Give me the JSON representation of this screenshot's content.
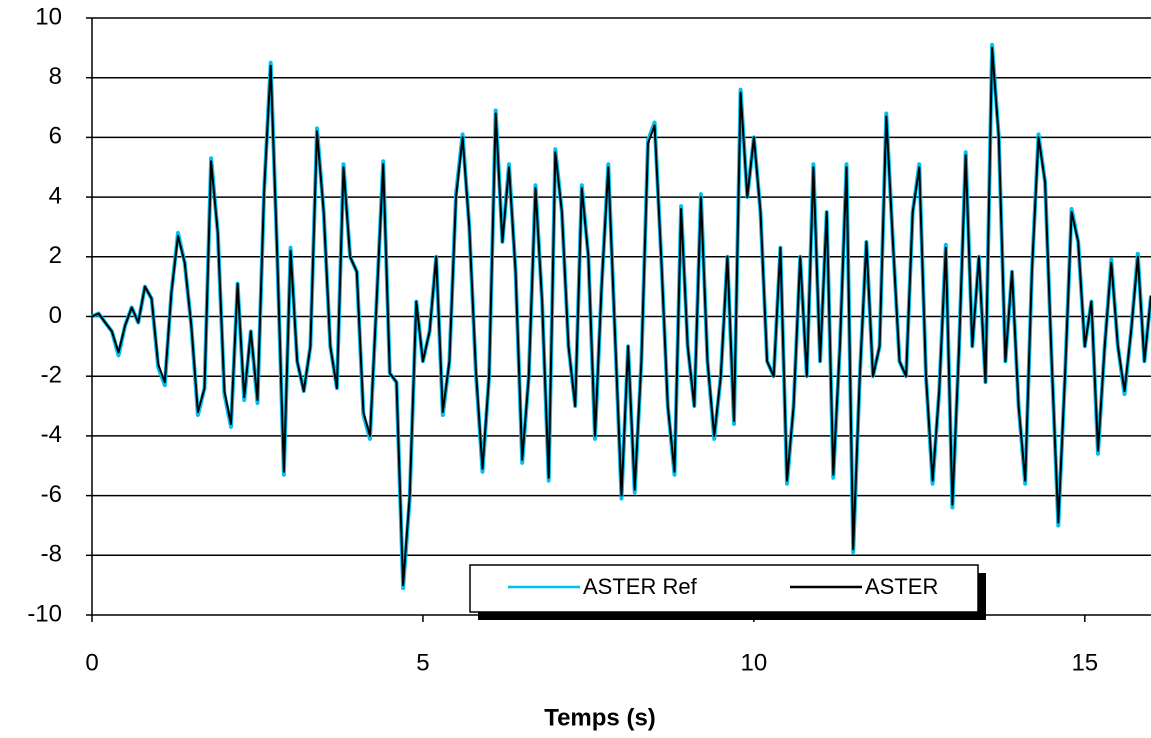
{
  "chart_data": {
    "type": "line",
    "xlabel": "Temps (s)",
    "x": [
      0,
      0.1,
      0.2,
      0.3,
      0.4,
      0.5,
      0.6,
      0.7,
      0.8,
      0.9,
      1,
      1.1,
      1.2,
      1.3,
      1.4,
      1.5,
      1.6,
      1.7,
      1.8,
      1.9,
      2,
      2.1,
      2.2,
      2.3,
      2.4,
      2.5,
      2.6,
      2.7,
      2.8,
      2.9,
      3,
      3.1,
      3.2,
      3.3,
      3.4,
      3.5,
      3.6,
      3.7,
      3.8,
      3.9,
      4,
      4.1,
      4.2,
      4.3,
      4.4,
      4.5,
      4.6,
      4.7,
      4.8,
      4.9,
      5,
      5.1,
      5.2,
      5.3,
      5.4,
      5.5,
      5.6,
      5.7,
      5.8,
      5.9,
      6,
      6.1,
      6.2,
      6.3,
      6.4,
      6.5,
      6.6,
      6.7,
      6.8,
      6.9,
      7,
      7.1,
      7.2,
      7.3,
      7.4,
      7.5,
      7.6,
      7.7,
      7.8,
      7.9,
      8,
      8.1,
      8.2,
      8.3,
      8.4,
      8.5,
      8.6,
      8.7,
      8.8,
      8.9,
      9,
      9.1,
      9.2,
      9.3,
      9.4,
      9.5,
      9.6,
      9.7,
      9.8,
      9.9,
      10,
      10.1,
      10.2,
      10.3,
      10.4,
      10.5,
      10.6,
      10.7,
      10.8,
      10.9,
      11,
      11.1,
      11.2,
      11.3,
      11.4,
      11.5,
      11.6,
      11.7,
      11.8,
      11.9,
      12,
      12.1,
      12.2,
      12.3,
      12.4,
      12.5,
      12.6,
      12.7,
      12.8,
      12.9,
      13,
      13.1,
      13.2,
      13.3,
      13.4,
      13.5,
      13.6,
      13.7,
      13.8,
      13.9,
      14,
      14.1,
      14.2,
      14.3,
      14.4,
      14.5,
      14.6,
      14.7,
      14.8,
      14.9,
      15,
      15.1,
      15.2,
      15.3,
      15.4,
      15.5,
      15.6,
      15.7,
      15.8,
      15.9,
      16
    ],
    "series": [
      {
        "name": "ASTER Ref",
        "color": "#00c0f0",
        "values": [
          0,
          0.1,
          -0.2,
          -0.5,
          -1.3,
          -0.3,
          0.3,
          -0.2,
          1.0,
          0.6,
          -1.7,
          -2.3,
          0.8,
          2.8,
          1.8,
          -0.3,
          -3.3,
          -2.4,
          5.3,
          2.8,
          -2.6,
          -3.7,
          1.1,
          -2.8,
          -0.5,
          -2.9,
          4.2,
          8.5,
          2.0,
          -5.3,
          2.3,
          -1.5,
          -2.5,
          -1.0,
          6.3,
          3.5,
          -1.0,
          -2.4,
          5.1,
          2.0,
          1.5,
          -3.3,
          -4.1,
          0.5,
          5.2,
          -1.9,
          -2.2,
          -9.1,
          -6.1,
          0.5,
          -1.5,
          -0.5,
          2.0,
          -3.3,
          -1.5,
          4.1,
          6.1,
          3.0,
          -1.9,
          -5.2,
          -2.0,
          6.9,
          2.5,
          5.1,
          1.5,
          -4.9,
          -2.0,
          4.4,
          0.5,
          -5.5,
          5.6,
          3.5,
          -1.0,
          -3.0,
          4.4,
          2.0,
          -4.1,
          1.0,
          5.1,
          -0.5,
          -6.1,
          -1.0,
          -5.9,
          -1.5,
          5.9,
          6.5,
          2.0,
          -3.0,
          -5.3,
          3.7,
          -1.0,
          -3.0,
          4.1,
          -1.5,
          -4.1,
          -2.0,
          2.0,
          -3.6,
          7.6,
          4.0,
          6.0,
          3.5,
          -1.5,
          -2.0,
          2.3,
          -5.6,
          -3.0,
          2.0,
          -2.0,
          5.1,
          -1.5,
          3.5,
          -5.4,
          -1.0,
          5.1,
          -7.9,
          -2.0,
          2.5,
          -2.0,
          -1.0,
          6.8,
          2.5,
          -1.5,
          -2.0,
          3.5,
          5.1,
          -2.0,
          -5.6,
          -2.5,
          2.4,
          -6.4,
          -1.0,
          5.5,
          -1.0,
          2.0,
          -2.2,
          9.1,
          6.0,
          -1.5,
          1.5,
          -3.0,
          -5.6,
          1.5,
          6.1,
          4.5,
          -1.5,
          -7.0,
          -2.0,
          3.6,
          2.5,
          -1.0,
          0.5,
          -4.6,
          -1.0,
          1.9,
          -1.0,
          -2.6,
          -0.5,
          2.1,
          -1.5,
          0.7
        ]
      },
      {
        "name": "ASTER",
        "color": "#000000",
        "values": [
          0,
          0.1,
          -0.2,
          -0.5,
          -1.2,
          -0.3,
          0.3,
          -0.2,
          1.0,
          0.6,
          -1.6,
          -2.2,
          0.8,
          2.7,
          1.8,
          -0.3,
          -3.2,
          -2.4,
          5.2,
          2.8,
          -2.5,
          -3.6,
          1.1,
          -2.7,
          -0.5,
          -2.8,
          4.2,
          8.4,
          2.0,
          -5.2,
          2.2,
          -1.5,
          -2.5,
          -1.0,
          6.2,
          3.5,
          -1.0,
          -2.4,
          5.0,
          2.0,
          1.5,
          -3.2,
          -4.0,
          0.5,
          5.1,
          -1.9,
          -2.2,
          -9.0,
          -6.0,
          0.5,
          -1.5,
          -0.5,
          2.0,
          -3.2,
          -1.5,
          4.0,
          6.0,
          3.0,
          -1.8,
          -5.1,
          -2.0,
          6.8,
          2.5,
          5.0,
          1.5,
          -4.8,
          -2.0,
          4.3,
          0.5,
          -5.4,
          5.5,
          3.5,
          -1.0,
          -3.0,
          4.3,
          2.0,
          -4.0,
          1.0,
          5.0,
          -0.5,
          -6.0,
          -1.0,
          -5.8,
          -1.5,
          5.8,
          6.4,
          2.0,
          -3.0,
          -5.2,
          3.6,
          -1.0,
          -3.0,
          4.0,
          -1.5,
          -4.0,
          -2.0,
          2.0,
          -3.5,
          7.5,
          4.0,
          6.0,
          3.5,
          -1.5,
          -2.0,
          2.3,
          -5.5,
          -3.0,
          2.0,
          -2.0,
          5.0,
          -1.5,
          3.5,
          -5.3,
          -1.0,
          5.0,
          -7.8,
          -2.0,
          2.5,
          -2.0,
          -1.0,
          6.7,
          2.5,
          -1.5,
          -2.0,
          3.5,
          5.0,
          -2.0,
          -5.5,
          -2.5,
          2.3,
          -6.3,
          -1.0,
          5.4,
          -1.0,
          2.0,
          -2.2,
          9.0,
          6.0,
          -1.5,
          1.5,
          -3.0,
          -5.5,
          1.5,
          6.0,
          4.5,
          -1.5,
          -6.9,
          -2.0,
          3.5,
          2.5,
          -1.0,
          0.5,
          -4.5,
          -1.0,
          1.8,
          -1.0,
          -2.5,
          -0.5,
          2.0,
          -1.5,
          0.7
        ]
      }
    ],
    "xlim": [
      0,
      16
    ],
    "xticks": [
      0,
      5,
      10,
      15
    ],
    "ylim": [
      -10,
      10
    ],
    "yticks": [
      -10,
      -8,
      -6,
      -4,
      -2,
      0,
      2,
      4,
      6,
      8,
      10
    ],
    "grid": true,
    "legend": "bottom"
  }
}
